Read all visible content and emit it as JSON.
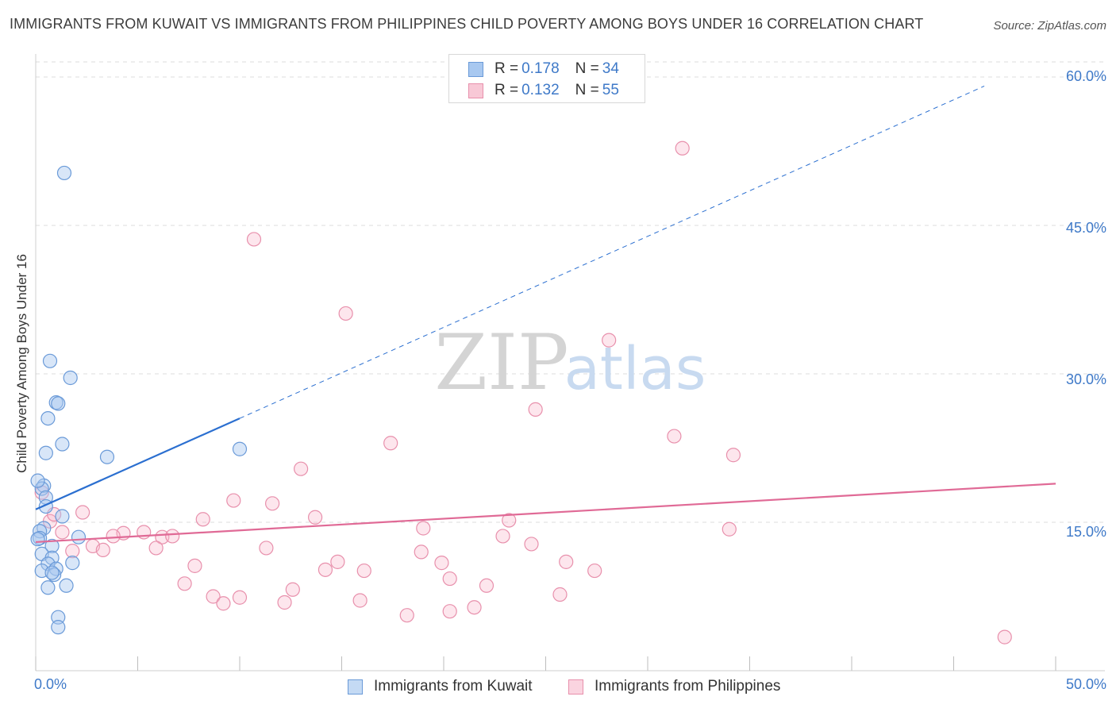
{
  "title": "IMMIGRANTS FROM KUWAIT VS IMMIGRANTS FROM PHILIPPINES CHILD POVERTY AMONG BOYS UNDER 16 CORRELATION CHART",
  "source": "Source: ZipAtlas.com",
  "watermark": {
    "zip": "ZIP",
    "atlas": "atlas"
  },
  "legend_top": [
    {
      "r_label": "R = ",
      "r_value": "0.178",
      "n_label": "N = ",
      "n_value": "34"
    },
    {
      "r_label": "R = ",
      "r_value": "0.132",
      "n_label": "N = ",
      "n_value": "55"
    }
  ],
  "legend_bottom": [
    {
      "name": "Immigrants from Kuwait"
    },
    {
      "name": "Immigrants from Philippines"
    }
  ],
  "colors": {
    "kuwait_fill": "#a8c8f0",
    "kuwait_stroke": "#6a9ad8",
    "kuwait_line": "#2b6fd0",
    "philippines_fill": "#f8b8cc",
    "philippines_stroke": "#e890ac",
    "philippines_line": "#e06a96",
    "axis_label": "#3e79c8",
    "grid": "#dcdcdc"
  },
  "chart_data": {
    "type": "scatter",
    "title": "IMMIGRANTS FROM KUWAIT VS IMMIGRANTS FROM PHILIPPINES CHILD POVERTY AMONG BOYS UNDER 16 CORRELATION CHART",
    "xlabel": "",
    "ylabel": "Child Poverty Among Boys Under 16",
    "xlim": [
      0,
      50
    ],
    "ylim": [
      0,
      60
    ],
    "x_tick_labels": [
      "0.0%",
      "50.0%"
    ],
    "y_ticks": [
      15,
      30,
      45,
      60
    ],
    "y_tick_labels": [
      "15.0%",
      "30.0%",
      "45.0%",
      "60.0%"
    ],
    "grid": true,
    "legend_position": "top-center",
    "series": [
      {
        "name": "Immigrants from Kuwait",
        "r": 0.178,
        "n": 34,
        "trend": {
          "x": [
            0,
            10
          ],
          "y": [
            16.3,
            25.5
          ],
          "extend_to_x": 46.5
        },
        "points": [
          [
            1.4,
            50.3
          ],
          [
            0.7,
            31.3
          ],
          [
            1.7,
            29.6
          ],
          [
            1.0,
            27.1
          ],
          [
            1.1,
            27.0
          ],
          [
            0.6,
            25.5
          ],
          [
            1.3,
            22.9
          ],
          [
            10.0,
            22.4
          ],
          [
            0.5,
            22.0
          ],
          [
            3.5,
            21.6
          ],
          [
            0.4,
            18.7
          ],
          [
            0.3,
            18.4
          ],
          [
            0.5,
            17.5
          ],
          [
            0.5,
            16.6
          ],
          [
            1.3,
            15.6
          ],
          [
            0.4,
            14.4
          ],
          [
            0.2,
            14.1
          ],
          [
            0.2,
            13.4
          ],
          [
            0.1,
            13.3
          ],
          [
            2.1,
            13.5
          ],
          [
            0.8,
            12.6
          ],
          [
            0.3,
            11.8
          ],
          [
            0.8,
            11.4
          ],
          [
            0.6,
            10.8
          ],
          [
            1.8,
            10.9
          ],
          [
            1.0,
            10.3
          ],
          [
            0.3,
            10.1
          ],
          [
            0.9,
            9.7
          ],
          [
            0.8,
            9.9
          ],
          [
            1.5,
            8.6
          ],
          [
            0.6,
            8.4
          ],
          [
            1.1,
            5.4
          ],
          [
            1.1,
            4.4
          ],
          [
            0.1,
            19.2
          ]
        ]
      },
      {
        "name": "Immigrants from Philippines",
        "r": 0.132,
        "n": 55,
        "trend": {
          "x": [
            0,
            50
          ],
          "y": [
            13.0,
            18.9
          ]
        },
        "points": [
          [
            31.7,
            52.8
          ],
          [
            10.7,
            43.6
          ],
          [
            15.2,
            36.1
          ],
          [
            28.1,
            33.4
          ],
          [
            24.5,
            26.4
          ],
          [
            31.3,
            23.7
          ],
          [
            17.4,
            23.0
          ],
          [
            34.2,
            21.8
          ],
          [
            13.0,
            20.4
          ],
          [
            0.3,
            18.0
          ],
          [
            9.7,
            17.2
          ],
          [
            11.6,
            16.9
          ],
          [
            2.3,
            16.0
          ],
          [
            13.7,
            15.5
          ],
          [
            8.2,
            15.3
          ],
          [
            0.7,
            15.1
          ],
          [
            23.2,
            15.2
          ],
          [
            19.0,
            14.4
          ],
          [
            34.0,
            14.3
          ],
          [
            4.3,
            13.9
          ],
          [
            5.3,
            14.0
          ],
          [
            3.8,
            13.6
          ],
          [
            6.2,
            13.5
          ],
          [
            6.7,
            13.6
          ],
          [
            1.3,
            14.0
          ],
          [
            22.9,
            13.6
          ],
          [
            2.8,
            12.6
          ],
          [
            24.3,
            12.8
          ],
          [
            11.3,
            12.4
          ],
          [
            5.9,
            12.4
          ],
          [
            3.3,
            12.2
          ],
          [
            1.8,
            12.1
          ],
          [
            18.9,
            12.0
          ],
          [
            14.8,
            11.0
          ],
          [
            26.0,
            11.0
          ],
          [
            19.9,
            10.9
          ],
          [
            7.8,
            10.6
          ],
          [
            14.2,
            10.2
          ],
          [
            16.1,
            10.1
          ],
          [
            27.4,
            10.1
          ],
          [
            20.3,
            9.3
          ],
          [
            7.3,
            8.8
          ],
          [
            12.6,
            8.2
          ],
          [
            22.1,
            8.6
          ],
          [
            8.7,
            7.5
          ],
          [
            10.0,
            7.4
          ],
          [
            25.7,
            7.7
          ],
          [
            9.2,
            6.8
          ],
          [
            12.2,
            6.9
          ],
          [
            15.9,
            7.1
          ],
          [
            21.5,
            6.4
          ],
          [
            20.3,
            6.0
          ],
          [
            18.2,
            5.6
          ],
          [
            47.5,
            3.4
          ],
          [
            0.9,
            15.8
          ]
        ]
      }
    ]
  }
}
